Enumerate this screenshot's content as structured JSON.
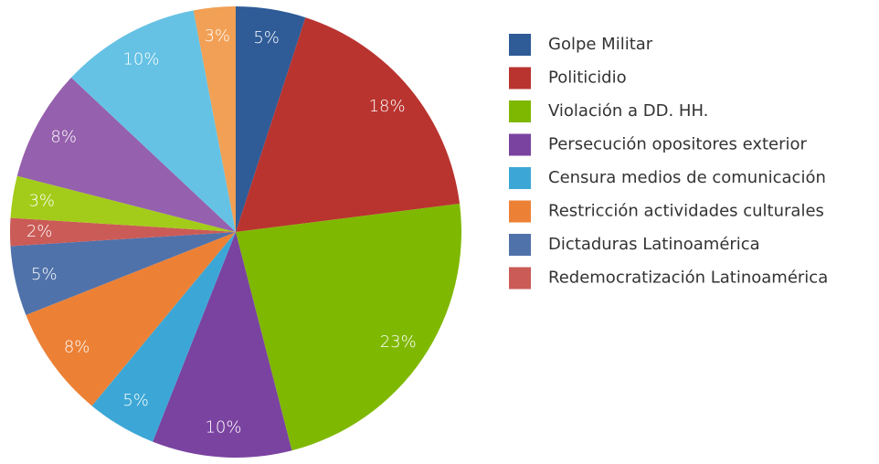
{
  "chart_data": {
    "type": "pie",
    "categories": [
      "Golpe Militar",
      "Politicidio",
      "Violación a DD. HH.",
      "Persecución opositores exterior",
      "Censura medios de comunicación",
      "Restricción actividades culturales",
      "Dictaduras Latinoamérica",
      "Redemocratización Latinoamérica",
      null,
      null,
      null,
      null
    ],
    "values": [
      5,
      18,
      23,
      10,
      5,
      8,
      5,
      2,
      3,
      8,
      10,
      3
    ],
    "value_labels": [
      "5%",
      "18%",
      "23%",
      "10%",
      "5%",
      "8%",
      "5%",
      "2%",
      "3%",
      "8%",
      "10%",
      "3%"
    ],
    "colors": [
      "#2f5b97",
      "#b9342f",
      "#7fb800",
      "#7a43a0",
      "#3ca7d6",
      "#ec8136",
      "#5072aa",
      "#cb5b57",
      "#a3cc1a",
      "#9560ad",
      "#66c2e4",
      "#f1a055"
    ],
    "legend": "right"
  }
}
